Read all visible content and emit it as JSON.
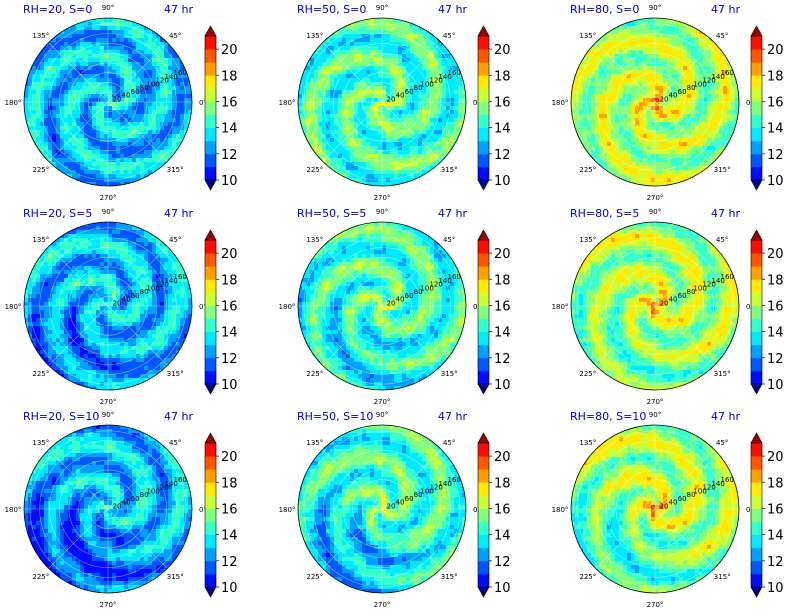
{
  "chart_data": {
    "type": "heatmap",
    "projection": "polar",
    "grid": true,
    "colormap": "jet",
    "colorbar": {
      "vmin": 10,
      "vmax": 21,
      "levels": [
        10,
        11,
        12,
        13,
        14,
        15,
        16,
        17,
        18,
        19,
        20,
        21
      ],
      "ticks": [
        "10",
        "12",
        "14",
        "16",
        "18",
        "20"
      ],
      "extend": "both"
    },
    "angular_ticks": [
      "0°",
      "45°",
      "90°",
      "135°",
      "180°",
      "225°",
      "270°",
      "315°"
    ],
    "radial_ticks": [
      "20",
      "40",
      "60",
      "80",
      "100",
      "120",
      "140",
      "160"
    ],
    "panels": [
      {
        "row": 0,
        "col": 0,
        "label": "RH=20, S=0",
        "time": "47 hr",
        "rh": 20,
        "s": 0
      },
      {
        "row": 0,
        "col": 1,
        "label": "RH=50, S=0",
        "time": "47 hr",
        "rh": 50,
        "s": 0
      },
      {
        "row": 0,
        "col": 2,
        "label": "RH=80, S=0",
        "time": "47 hr",
        "rh": 80,
        "s": 0
      },
      {
        "row": 1,
        "col": 0,
        "label": "RH=20, S=5",
        "time": "47 hr",
        "rh": 20,
        "s": 5
      },
      {
        "row": 1,
        "col": 1,
        "label": "RH=50, S=5",
        "time": "47 hr",
        "rh": 50,
        "s": 5
      },
      {
        "row": 1,
        "col": 2,
        "label": "RH=80, S=5",
        "time": "47 hr",
        "rh": 80,
        "s": 5
      },
      {
        "row": 2,
        "col": 0,
        "label": "RH=20, S=10",
        "time": "47 hr",
        "rh": 20,
        "s": 10
      },
      {
        "row": 2,
        "col": 1,
        "label": "RH=50, S=10",
        "time": "47 hr",
        "rh": 50,
        "s": 10
      },
      {
        "row": 2,
        "col": 2,
        "label": "RH=80, S=10",
        "time": "47 hr",
        "rh": 80,
        "s": 10
      }
    ]
  }
}
